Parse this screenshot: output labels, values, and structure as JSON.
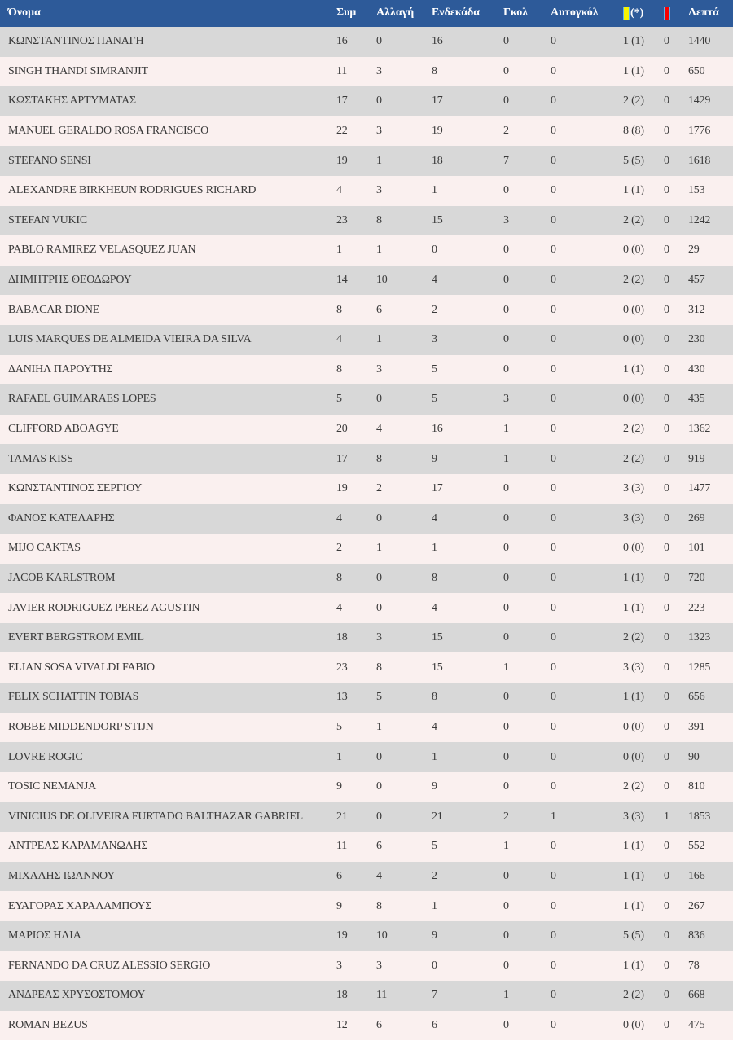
{
  "colors": {
    "header_bg": "#2d5a99",
    "row_even": "#d8d8d8",
    "row_odd": "#faf0ef",
    "text": "#3a3a3a",
    "header_text": "#ffffff",
    "yellow_card": "#f7f400",
    "red_card": "#f60000",
    "card_border": "#5fb2e8"
  },
  "table": {
    "columns": [
      {
        "key": "name",
        "label": "Όνομα"
      },
      {
        "key": "appearances",
        "label": "Συμ"
      },
      {
        "key": "substitutions",
        "label": "Αλλαγή"
      },
      {
        "key": "starting_eleven",
        "label": "Ενδεκάδα"
      },
      {
        "key": "goals",
        "label": "Γκολ"
      },
      {
        "key": "own_goals",
        "label": "Αυτογκόλ"
      },
      {
        "key": "yellow_cards",
        "label": "(*)",
        "icon": "yellow-card-icon"
      },
      {
        "key": "red_cards",
        "label": "",
        "icon": "red-card-icon"
      },
      {
        "key": "minutes",
        "label": "Λεπτά"
      }
    ],
    "rows": [
      [
        "ΚΩΝΣΤΑΝΤΙΝΟΣ ΠΑΝΑΓΗ",
        "16",
        "0",
        "16",
        "0",
        "0",
        "1 (1)",
        "0",
        "1440"
      ],
      [
        "SINGH THANDI SIMRANJIT",
        "11",
        "3",
        "8",
        "0",
        "0",
        "1 (1)",
        "0",
        "650"
      ],
      [
        "ΚΩΣΤΑΚΗΣ ΑΡΤΥΜΑΤΑΣ",
        "17",
        "0",
        "17",
        "0",
        "0",
        "2 (2)",
        "0",
        "1429"
      ],
      [
        "MANUEL GERALDO ROSA FRANCISCO",
        "22",
        "3",
        "19",
        "2",
        "0",
        "8 (8)",
        "0",
        "1776"
      ],
      [
        "STEFANO SENSI",
        "19",
        "1",
        "18",
        "7",
        "0",
        "5 (5)",
        "0",
        "1618"
      ],
      [
        "ALEXANDRE BIRKHEUN RODRIGUES RICHARD",
        "4",
        "3",
        "1",
        "0",
        "0",
        "1 (1)",
        "0",
        "153"
      ],
      [
        "STEFAN VUKIC",
        "23",
        "8",
        "15",
        "3",
        "0",
        "2 (2)",
        "0",
        "1242"
      ],
      [
        "PABLO RAMIREZ VELASQUEZ JUAN",
        "1",
        "1",
        "0",
        "0",
        "0",
        "0 (0)",
        "0",
        "29"
      ],
      [
        "ΔΗΜΗΤΡΗΣ ΘΕΟΔΩΡΟΥ",
        "14",
        "10",
        "4",
        "0",
        "0",
        "2 (2)",
        "0",
        "457"
      ],
      [
        "BABACAR DIONE",
        "8",
        "6",
        "2",
        "0",
        "0",
        "0 (0)",
        "0",
        "312"
      ],
      [
        "LUIS MARQUES DE ALMEIDA VIEIRA DA SILVA",
        "4",
        "1",
        "3",
        "0",
        "0",
        "0 (0)",
        "0",
        "230"
      ],
      [
        "ΔΑΝΙΗΛ ΠΑΡΟΥΤΗΣ",
        "8",
        "3",
        "5",
        "0",
        "0",
        "1 (1)",
        "0",
        "430"
      ],
      [
        "RAFAEL GUIMARAES LOPES",
        "5",
        "0",
        "5",
        "3",
        "0",
        "0 (0)",
        "0",
        "435"
      ],
      [
        "CLIFFORD ABOAGYE",
        "20",
        "4",
        "16",
        "1",
        "0",
        "2 (2)",
        "0",
        "1362"
      ],
      [
        "TAMAS KISS",
        "17",
        "8",
        "9",
        "1",
        "0",
        "2 (2)",
        "0",
        "919"
      ],
      [
        "ΚΩΝΣΤΑΝΤΙΝΟΣ ΣΕΡΓΙΟΥ",
        "19",
        "2",
        "17",
        "0",
        "0",
        "3 (3)",
        "0",
        "1477"
      ],
      [
        "ΦΑΝΟΣ ΚΑΤΕΛΑΡΗΣ",
        "4",
        "0",
        "4",
        "0",
        "0",
        "3 (3)",
        "0",
        "269"
      ],
      [
        "MIJO CAKTAS",
        "2",
        "1",
        "1",
        "0",
        "0",
        "0 (0)",
        "0",
        "101"
      ],
      [
        "JACOB KARLSTROM",
        "8",
        "0",
        "8",
        "0",
        "0",
        "1 (1)",
        "0",
        "720"
      ],
      [
        "JAVIER RODRIGUEZ PEREZ AGUSTIN",
        "4",
        "0",
        "4",
        "0",
        "0",
        "1 (1)",
        "0",
        "223"
      ],
      [
        "EVERT BERGSTROM EMIL",
        "18",
        "3",
        "15",
        "0",
        "0",
        "2 (2)",
        "0",
        "1323"
      ],
      [
        "ELIAN SOSA VIVALDI FABIO",
        "23",
        "8",
        "15",
        "1",
        "0",
        "3 (3)",
        "0",
        "1285"
      ],
      [
        "FELIX SCHATTIN TOBIAS",
        "13",
        "5",
        "8",
        "0",
        "0",
        "1 (1)",
        "0",
        "656"
      ],
      [
        "ROBBE MIDDENDORP STIJN",
        "5",
        "1",
        "4",
        "0",
        "0",
        "0 (0)",
        "0",
        "391"
      ],
      [
        "LOVRE ROGIC",
        "1",
        "0",
        "1",
        "0",
        "0",
        "0 (0)",
        "0",
        "90"
      ],
      [
        "TOSIC NEMANJA",
        "9",
        "0",
        "9",
        "0",
        "0",
        "2 (2)",
        "0",
        "810"
      ],
      [
        "VINICIUS DE OLIVEIRA FURTADO BALTHAZAR GABRIEL",
        "21",
        "0",
        "21",
        "2",
        "1",
        "3 (3)",
        "1",
        "1853"
      ],
      [
        "ΑΝΤΡΕΑΣ ΚΑΡΑΜΑΝΩΛΗΣ",
        "11",
        "6",
        "5",
        "1",
        "0",
        "1 (1)",
        "0",
        "552"
      ],
      [
        "ΜΙΧΑΛΗΣ ΙΩΑΝΝΟΥ",
        "6",
        "4",
        "2",
        "0",
        "0",
        "1 (1)",
        "0",
        "166"
      ],
      [
        "ΕΥΑΓΟΡΑΣ ΧΑΡΑΛΑΜΠΟΥΣ",
        "9",
        "8",
        "1",
        "0",
        "0",
        "1 (1)",
        "0",
        "267"
      ],
      [
        "ΜΑΡΙΟΣ ΗΛΙΑ",
        "19",
        "10",
        "9",
        "0",
        "0",
        "5 (5)",
        "0",
        "836"
      ],
      [
        "FERNANDO DA CRUZ ALESSIO SERGIO",
        "3",
        "3",
        "0",
        "0",
        "0",
        "1 (1)",
        "0",
        "78"
      ],
      [
        "ΑΝΔΡΕΑΣ ΧΡΥΣΟΣΤΟΜΟΥ",
        "18",
        "11",
        "7",
        "1",
        "0",
        "2 (2)",
        "0",
        "668"
      ],
      [
        "ROMAN BEZUS",
        "12",
        "6",
        "6",
        "0",
        "0",
        "0 (0)",
        "0",
        "475"
      ]
    ]
  }
}
